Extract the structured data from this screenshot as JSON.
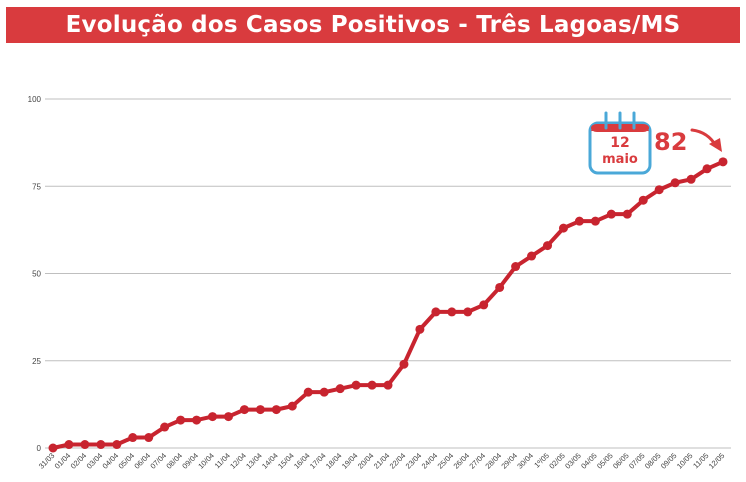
{
  "title": "Evolução dos Casos Positivos - Três Lagoas/MS",
  "colors": {
    "accent": "#d93b3e",
    "line": "#c8242f",
    "grid": "#bfbfbf",
    "calendar_blue": "#4aa8d8"
  },
  "callout": {
    "day": "12",
    "month": "maio",
    "value": "82",
    "icon": "calendar-icon"
  },
  "chart_data": {
    "type": "line",
    "title": "Evolução dos Casos Positivos - Três Lagoas/MS",
    "xlabel": "",
    "ylabel": "",
    "ylim": [
      0,
      100
    ],
    "yticks": [
      "0",
      "25",
      "50",
      "75",
      "100"
    ],
    "grid": true,
    "categories": [
      "31/03",
      "01/04",
      "02/04",
      "03/04",
      "04/04",
      "05/04",
      "06/04",
      "07/04",
      "08/04",
      "09/04",
      "10/04",
      "11/04",
      "12/04",
      "13/04",
      "14/04",
      "15/04",
      "16/04",
      "17/04",
      "18/04",
      "19/04",
      "20/04",
      "21/04",
      "22/04",
      "23/04",
      "24/04",
      "25/04",
      "26/04",
      "27/04",
      "28/04",
      "29/04",
      "30/04",
      "1º/05",
      "02/05",
      "03/05",
      "04/05",
      "05/05",
      "06/05",
      "07/05",
      "08/05",
      "09/05",
      "10/05",
      "11/05",
      "12/05"
    ],
    "values": [
      0,
      1,
      1,
      1,
      1,
      3,
      3,
      6,
      8,
      8,
      9,
      9,
      11,
      11,
      11,
      12,
      16,
      16,
      17,
      18,
      18,
      18,
      24,
      34,
      39,
      39,
      39,
      41,
      46,
      52,
      55,
      58,
      63,
      65,
      65,
      67,
      67,
      71,
      74,
      76,
      77,
      80,
      82
    ]
  }
}
